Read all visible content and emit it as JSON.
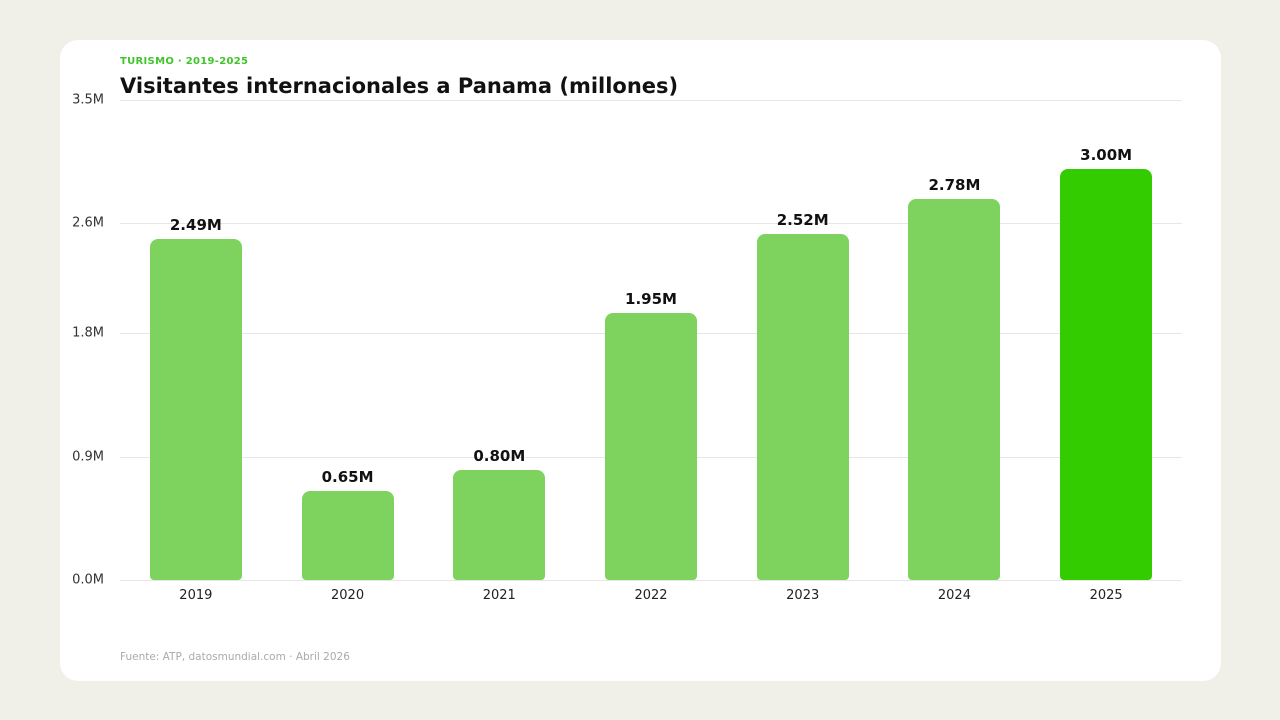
{
  "header": {
    "eyebrow": "TURISMO · 2019-2025",
    "title": "Visitantes internacionales a Panama (millones)"
  },
  "footer": {
    "source": "Fuente: ATP, datosmundial.com · Abril 2026"
  },
  "colors": {
    "bar": "#7ed35f",
    "highlight": "#33cc00",
    "eyebrow": "#3fc52a",
    "background": "#f0f0e8"
  },
  "chart_data": {
    "type": "bar",
    "title": "Visitantes internacionales a Panama (millones)",
    "subtitle": "TURISMO · 2019-2025",
    "xlabel": "",
    "ylabel": "",
    "categories": [
      "2019",
      "2020",
      "2021",
      "2022",
      "2023",
      "2024",
      "2025"
    ],
    "values": [
      2.49,
      0.65,
      0.8,
      1.95,
      2.52,
      2.78,
      3.0
    ],
    "value_labels": [
      "2.49M",
      "0.65M",
      "0.80M",
      "1.95M",
      "2.52M",
      "2.78M",
      "3.00M"
    ],
    "ylim": [
      0,
      3.5
    ],
    "yticks": [
      0,
      0.9,
      1.8,
      2.6,
      3.5
    ],
    "ytick_labels": [
      "0.0M",
      "0.9M",
      "1.8M",
      "2.6M",
      "3.5M"
    ],
    "grid": true,
    "legend": null,
    "highlight_index": 6,
    "annotation": "Fuente: ATP, datosmundial.com · Abril 2026"
  }
}
